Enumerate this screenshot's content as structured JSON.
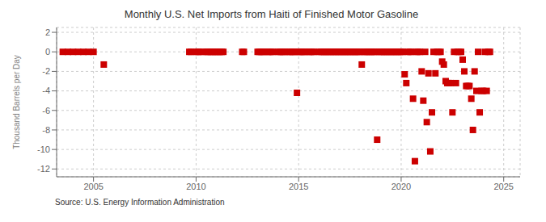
{
  "chart_data": {
    "type": "scatter",
    "title": "Monthly U.S. Net Imports from Haiti of Finished Motor Gasoline",
    "ylabel": "Thousand Barrels per Day",
    "annotations": [
      "Source: U.S. Energy Information Administration"
    ],
    "color": "#cc0000",
    "marker": "square",
    "grid": true,
    "xlim": [
      2003.2,
      2025.8
    ],
    "ylim": [
      -12.8,
      2.5
    ],
    "xticks": [
      2005,
      2010,
      2015,
      2020,
      2025
    ],
    "yticks": [
      2,
      0,
      -2,
      -4,
      -6,
      -8,
      -10,
      -12
    ],
    "x": [
      2003.5,
      2003.75,
      2004.0,
      2004.25,
      2004.5,
      2004.75,
      2005.0,
      2005.5,
      2009.67,
      2009.75,
      2010.0,
      2010.08,
      2010.17,
      2010.33,
      2010.5,
      2010.58,
      2010.67,
      2010.75,
      2010.83,
      2010.92,
      2011.0,
      2011.08,
      2011.17,
      2011.25,
      2011.33,
      2012.25,
      2012.33,
      2013.0,
      2013.08,
      2013.17,
      2013.25,
      2013.33,
      2013.5,
      2013.58,
      2013.67,
      2013.75,
      2014.0,
      2014.08,
      2014.17,
      2014.25,
      2014.33,
      2014.5,
      2014.58,
      2014.67,
      2014.75,
      2014.83,
      2014.92,
      2015.0,
      2015.08,
      2015.17,
      2015.25,
      2015.33,
      2015.5,
      2015.58,
      2015.67,
      2015.75,
      2016.0,
      2016.08,
      2016.17,
      2016.25,
      2016.33,
      2016.42,
      2016.5,
      2016.58,
      2016.67,
      2016.75,
      2016.83,
      2016.92,
      2017.0,
      2017.08,
      2017.17,
      2017.25,
      2017.33,
      2017.42,
      2017.5,
      2017.58,
      2017.67,
      2017.75,
      2017.83,
      2017.92,
      2018.0,
      2018.08,
      2018.17,
      2018.25,
      2018.33,
      2018.42,
      2018.5,
      2018.58,
      2018.67,
      2018.75,
      2018.83,
      2018.92,
      2019.0,
      2019.08,
      2019.17,
      2019.25,
      2019.33,
      2019.42,
      2019.5,
      2019.58,
      2019.67,
      2019.75,
      2019.83,
      2019.92,
      2020.0,
      2020.08,
      2020.17,
      2020.25,
      2020.33,
      2020.42,
      2020.5,
      2020.58,
      2020.67,
      2020.75,
      2020.83,
      2020.92,
      2021.0,
      2021.08,
      2021.17,
      2021.25,
      2021.33,
      2021.42,
      2021.5,
      2021.58,
      2021.67,
      2021.75,
      2021.83,
      2021.92,
      2022.0,
      2022.08,
      2022.17,
      2022.25,
      2022.33,
      2022.42,
      2022.5,
      2022.58,
      2022.67,
      2022.75,
      2022.83,
      2022.92,
      2023.0,
      2023.08,
      2023.17,
      2023.25,
      2023.33,
      2023.42,
      2023.5,
      2023.58,
      2023.67,
      2023.75,
      2023.83,
      2023.92,
      2024.0,
      2024.08,
      2024.17,
      2024.25,
      2024.33
    ],
    "values": [
      0,
      0,
      0,
      0,
      0,
      0,
      0,
      -1.3,
      0,
      0,
      0,
      0,
      0,
      0,
      0,
      0,
      0,
      0,
      0,
      0,
      0,
      0,
      0,
      0,
      0,
      0,
      0,
      0,
      0,
      0,
      0,
      0,
      0,
      0,
      0,
      0,
      0,
      0,
      0,
      0,
      0,
      0,
      0,
      0,
      0,
      0,
      -4.2,
      0,
      0,
      0,
      0,
      0,
      0,
      0,
      0,
      0,
      0,
      0,
      0,
      0,
      0,
      0,
      0,
      0,
      0,
      0,
      0,
      0,
      0,
      0,
      0,
      0,
      0,
      0,
      0,
      0,
      0,
      0,
      0,
      0,
      0,
      -1.3,
      0,
      0,
      0,
      0,
      0,
      0,
      0,
      0,
      -9.0,
      0,
      0,
      0,
      0,
      0,
      0,
      0,
      0,
      0,
      0,
      0,
      0,
      0,
      0,
      0,
      -2.3,
      -3.2,
      0,
      0,
      0,
      -4.8,
      -11.2,
      0,
      0,
      0,
      -2.0,
      -5.0,
      0,
      -7.2,
      -2.2,
      -10.2,
      -6.2,
      0,
      -2.2,
      0,
      0,
      0,
      -1.0,
      -1.3,
      -3.0,
      -3.2,
      -3.2,
      -3.2,
      -6.2,
      0,
      -3.2,
      0,
      0,
      0,
      -0.8,
      -2.0,
      -3.5,
      -3.5,
      -3.5,
      -4.8,
      -8.0,
      -2.0,
      -4.0,
      0,
      -6.2,
      -4.0,
      -4.0,
      0,
      -4.0,
      0,
      0
    ]
  }
}
